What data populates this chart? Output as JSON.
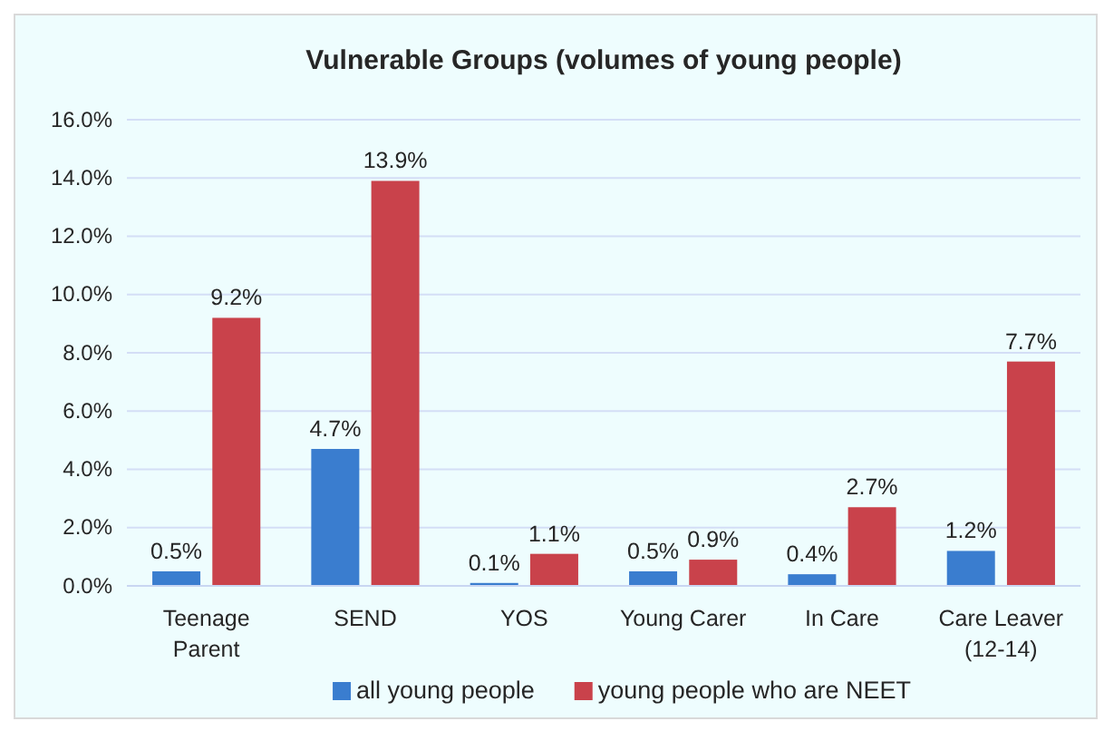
{
  "chart_data": {
    "type": "bar",
    "title": "Vulnerable Groups (volumes of  young people)",
    "categories": [
      "Teenage Parent",
      "SEND",
      "YOS",
      "Young Carer",
      "In Care",
      "Care Leaver (12-14)"
    ],
    "series": [
      {
        "name": "all young people",
        "color": "#3a7dcf",
        "values": [
          0.5,
          4.7,
          0.1,
          0.5,
          0.4,
          1.2
        ],
        "value_labels": [
          "0.5%",
          "4.7%",
          "0.1%",
          "0.5%",
          "0.4%",
          "1.2%"
        ]
      },
      {
        "name": "young people who are NEET",
        "color": "#c9424b",
        "values": [
          9.2,
          13.9,
          1.1,
          0.9,
          2.7,
          7.7
        ],
        "value_labels": [
          "9.2%",
          "13.9%",
          "1.1%",
          "0.9%",
          "2.7%",
          "7.7%"
        ]
      }
    ],
    "ylim": [
      0,
      16
    ],
    "yticks": [
      {
        "value": 0,
        "label": "0.0%"
      },
      {
        "value": 2,
        "label": "2.0%"
      },
      {
        "value": 4,
        "label": "4.0%"
      },
      {
        "value": 6,
        "label": "6.0%"
      },
      {
        "value": 8,
        "label": "8.0%"
      },
      {
        "value": 10,
        "label": "10.0%"
      },
      {
        "value": 12,
        "label": "12.0%"
      },
      {
        "value": 14,
        "label": "14.0%"
      },
      {
        "value": 16,
        "label": "16.0%"
      }
    ],
    "grid": "y",
    "legend": "bottom"
  }
}
